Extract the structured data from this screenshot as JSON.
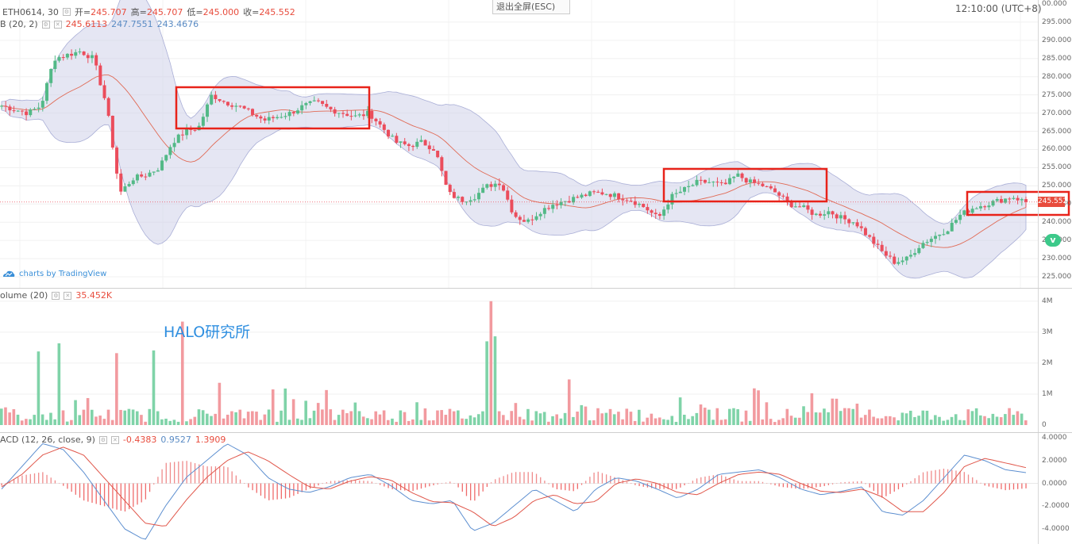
{
  "header": {
    "symbol": "ETH0614, 30",
    "open_label": "开=",
    "open": "245.707",
    "high_label": "高=",
    "high": "245.707",
    "low_label": "低=",
    "low": "245.000",
    "close_label": "收=",
    "close": "245.552",
    "exit_fullscreen": "退出全屏(ESC)",
    "clock": "12:10:00",
    "timezone": "(UTC+8)",
    "bb_label": "B (20, 2)",
    "bb_middle": "245.6113",
    "bb_upper": "247.7551",
    "bb_lower": "243.4676",
    "vol_label": "olume (20)",
    "vol_value": "35.452K",
    "macd_label": "ACD (12, 26, close, 9)",
    "macd_hist": "-0.4383",
    "macd_line": "0.9527",
    "macd_signal": "1.3909",
    "tv_logo": "charts by TradingView",
    "watermark": "HALO研究所",
    "last_price_tag": "245.552",
    "icon": "tradingview-cloud-icon"
  },
  "colors": {
    "up": "#53b987",
    "down": "#eb4d5c",
    "band": "#cfd1ea",
    "basis": "#e06a55",
    "highlight": "#e8231a",
    "macd_line": "#5d8fd0",
    "signal_line": "#e0564a"
  },
  "chart_data": [
    {
      "type": "candlestick",
      "title": "ETH0614, 30",
      "indicator": "BB (20, 2)",
      "ylim": [
        225,
        300
      ],
      "price_ticks": [
        "00.000",
        "295.000",
        "290.000",
        "285.000",
        "280.000",
        "275.000",
        "270.000",
        "265.000",
        "260.000",
        "255.000",
        "250.000",
        "245.000",
        "240.000",
        "235.000",
        "230.000",
        "225.000"
      ],
      "last_price": 245.552,
      "close_path": [
        272,
        271,
        270,
        272,
        285,
        286,
        287,
        285,
        272,
        248,
        252,
        253,
        255,
        262,
        265,
        266,
        275,
        273,
        272,
        270,
        268,
        269,
        270,
        272,
        273,
        271,
        270,
        269,
        270,
        266,
        262,
        261,
        262,
        260,
        248,
        246,
        247,
        250,
        251,
        242,
        240,
        243,
        245,
        246,
        247,
        248,
        248,
        247,
        246,
        244,
        241,
        247,
        249,
        251,
        251,
        250,
        253,
        251,
        250,
        248,
        245,
        244,
        242,
        243,
        241,
        240,
        236,
        232,
        229,
        230,
        234,
        236,
        238,
        242,
        244,
        245,
        246,
        247,
        245.5
      ],
      "highlight_boxes": 4
    },
    {
      "type": "bar",
      "title": "Volume (20)",
      "last_value": "35.452K",
      "ylim": [
        0,
        4.2
      ],
      "unit": "M",
      "ticks": [
        "4M",
        "3M",
        "2M",
        "1M",
        "0"
      ],
      "peaks": [
        0.6,
        3.1,
        0.9,
        3.3,
        2.9,
        3.5,
        1.4,
        0.5,
        1.5,
        0.9,
        1.2,
        0.8,
        1.0,
        0.7,
        1.1,
        4.2,
        0.9,
        1.6,
        0.7,
        0.6,
        1.0,
        0.9,
        0.8,
        1.2,
        0.7,
        1.1,
        0.9,
        0.8,
        1.3,
        1.2,
        0.6,
        0.5
      ]
    },
    {
      "type": "line",
      "title": "MACD (12, 26, close, 9)",
      "series": [
        {
          "name": "MACD",
          "values": [
            -0.5,
            1.5,
            3.5,
            3.0,
            1.0,
            -1.5,
            -4.0,
            -5.0,
            -2.0,
            0.5,
            2.0,
            3.5,
            2.5,
            0.5,
            -0.5,
            -0.8,
            -0.3,
            0.5,
            0.8,
            -0.2,
            -1.5,
            -1.8,
            -1.5,
            -4.2,
            -3.5,
            -2.0,
            -0.5,
            -1.5,
            -2.5,
            -0.5,
            0.5,
            0.2,
            -0.5,
            -1.3,
            -0.5,
            0.8,
            1.0,
            1.2,
            0.5,
            -0.5,
            -1.0,
            -0.7,
            -0.3,
            -2.5,
            -2.8,
            -1.5,
            0.5,
            2.5,
            2.0,
            1.2,
            0.95
          ]
        },
        {
          "name": "Signal",
          "values": [
            -0.3,
            0.8,
            2.5,
            3.2,
            2.5,
            0.5,
            -1.5,
            -3.5,
            -3.8,
            -1.5,
            0.5,
            2.0,
            2.8,
            2.0,
            0.8,
            -0.3,
            -0.5,
            0.2,
            0.6,
            0.3,
            -0.8,
            -1.6,
            -1.7,
            -2.5,
            -3.8,
            -3.0,
            -1.5,
            -1.0,
            -1.8,
            -1.6,
            0.0,
            0.4,
            0.0,
            -0.8,
            -1.0,
            0.0,
            0.8,
            1.0,
            0.8,
            0.0,
            -0.7,
            -0.8,
            -0.5,
            -1.2,
            -2.5,
            -2.5,
            -0.8,
            1.5,
            2.2,
            1.8,
            1.39
          ]
        }
      ],
      "ylim": [
        -5,
        4.5
      ],
      "ticks": [
        "4.0000",
        "2.0000",
        "0.0000",
        "-2.0000",
        "-4.0000"
      ]
    }
  ]
}
